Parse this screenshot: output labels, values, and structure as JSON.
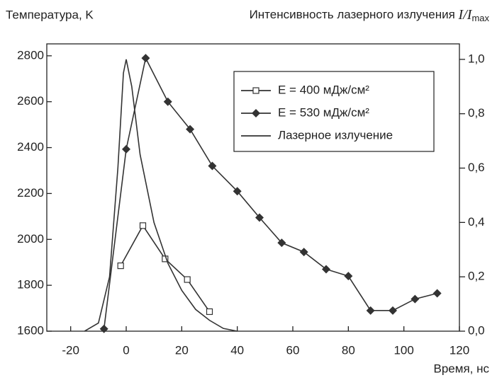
{
  "chart_data": {
    "type": "line",
    "y_label": "Температура, K",
    "y2_label": {
      "text": "Интенсивность лазерного излучения",
      "symbol": "I/I",
      "subscript": "max"
    },
    "x_label": "Время, нс",
    "xlim": [
      -28.6,
      120
    ],
    "xticks": [
      -20,
      0,
      20,
      40,
      60,
      80,
      100,
      120
    ],
    "ylim": [
      1600,
      2852
    ],
    "yticks": [
      1600,
      1800,
      2000,
      2200,
      2400,
      2600,
      2800
    ],
    "y2lim": [
      0,
      1.057
    ],
    "y2ticks": [
      {
        "value": 0,
        "label": "0,0"
      },
      {
        "value": 0.2,
        "label": "0,2"
      },
      {
        "value": 0.4,
        "label": "0,4"
      },
      {
        "value": 0.6,
        "label": "0,6"
      },
      {
        "value": 0.8,
        "label": "0,8"
      },
      {
        "value": 1.0,
        "label": "1,0"
      }
    ],
    "series": [
      {
        "name": "E = 400 мДж/см²",
        "color": "#333333",
        "marker": "square",
        "x": [
          -2,
          6,
          14,
          22,
          30
        ],
        "values": [
          1885,
          2060,
          1915,
          1825,
          1685
        ]
      },
      {
        "name": "E = 530 мДж/см²",
        "color": "#333333",
        "marker": "diamond",
        "x": [
          -8,
          0,
          7,
          15,
          23,
          31,
          40,
          48,
          56,
          64,
          72,
          80,
          88,
          96,
          104,
          112
        ],
        "values": [
          1610,
          2393,
          2790,
          2600,
          2480,
          2320,
          2210,
          2095,
          1985,
          1945,
          1870,
          1840,
          1690,
          1690,
          1740,
          1765
        ]
      },
      {
        "name": "Лазерное излучение",
        "color": "#333333",
        "axis": "y2",
        "x": [
          -15,
          -10,
          -6,
          -3,
          -1,
          0,
          2,
          5,
          10,
          15,
          20,
          25,
          30,
          35,
          40
        ],
        "values": [
          0,
          0.03,
          0.2,
          0.6,
          0.95,
          1.0,
          0.9,
          0.65,
          0.4,
          0.25,
          0.15,
          0.08,
          0.04,
          0.01,
          0
        ]
      }
    ]
  }
}
